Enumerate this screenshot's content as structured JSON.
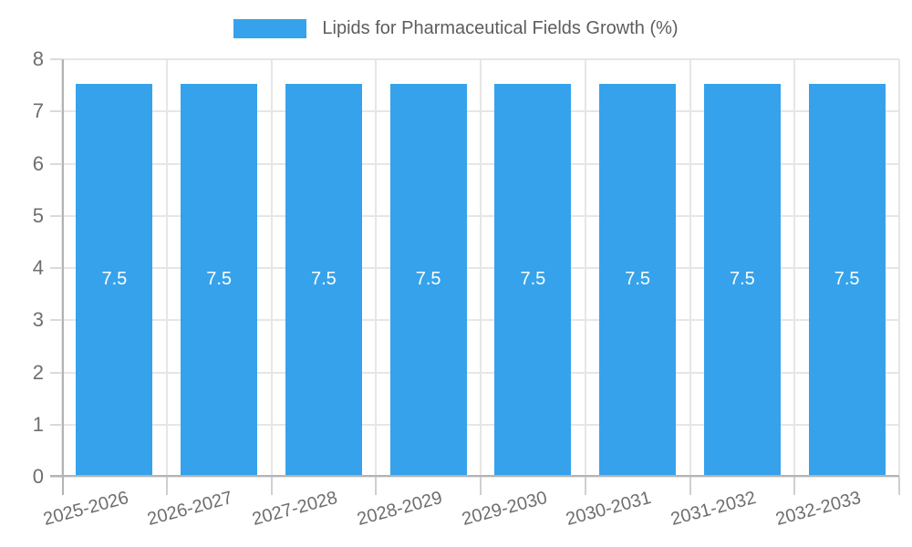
{
  "legend": {
    "label": "Lipids for Pharmaceutical Fields Growth (%)"
  },
  "chart_data": {
    "type": "bar",
    "title": "Lipids for Pharmaceutical Fields Growth (%)",
    "categories": [
      "2025-2026",
      "2026-2027",
      "2027-2028",
      "2028-2029",
      "2029-2030",
      "2030-2031",
      "2031-2032",
      "2032-2033"
    ],
    "values": [
      7.5,
      7.5,
      7.5,
      7.5,
      7.5,
      7.5,
      7.5,
      7.5
    ],
    "value_labels": [
      "7.5",
      "7.5",
      "7.5",
      "7.5",
      "7.5",
      "7.5",
      "7.5",
      "7.5"
    ],
    "xlabel": "",
    "ylabel": "",
    "ylim": [
      0,
      8
    ],
    "yticks": [
      0,
      1,
      2,
      3,
      4,
      5,
      6,
      7,
      8
    ],
    "grid": true,
    "legend_position": "top",
    "bar_color": "#36a2eb",
    "value_label_color": "#ffffff"
  },
  "colors": {
    "bar": "#36a2eb",
    "gridline": "#e6e6e6",
    "axis_line": "#b3b3b3",
    "tick_label": "#6e6e6e",
    "legend_text": "#5d5d5d",
    "value_label": "#ffffff",
    "background": "#ffffff"
  }
}
